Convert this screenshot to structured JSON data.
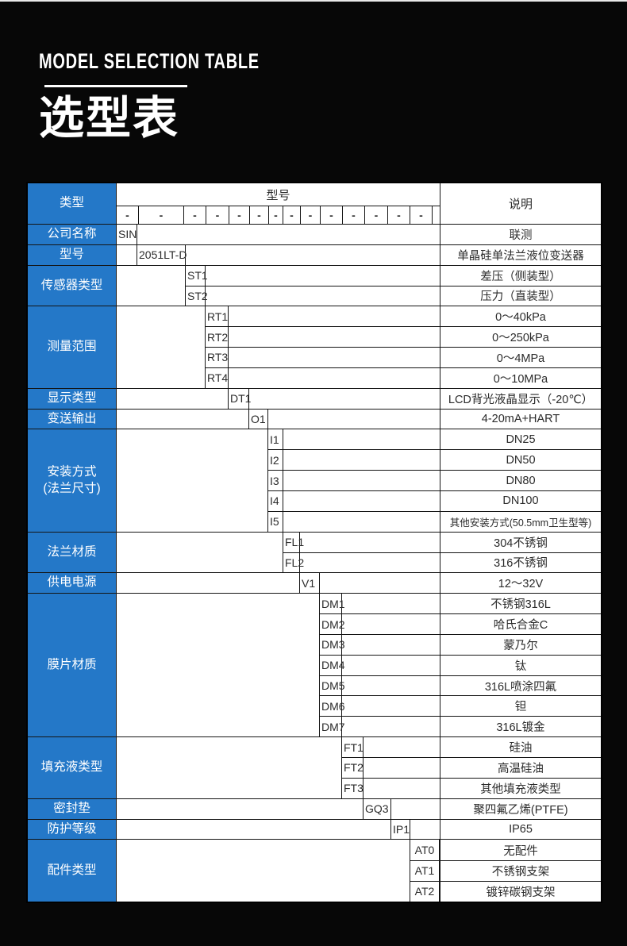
{
  "page": {
    "eyebrow": "MODEL SELECTION TABLE",
    "title": "选型表"
  },
  "colors": {
    "accent_blue": "#2478C8",
    "background_black": "#070707",
    "cell_white": "#ffffff",
    "border": "#141414"
  },
  "table": {
    "header": {
      "category": "类型",
      "model_group": "型号",
      "description": "说明",
      "dashes": [
        "-",
        "-",
        "-",
        "-",
        "-",
        "-",
        "-",
        "-",
        "-",
        "-",
        "-",
        "-",
        "-",
        "-"
      ]
    },
    "sections": [
      {
        "label": "公司名称",
        "items": [
          {
            "code": "SIN",
            "desc": "联测"
          }
        ]
      },
      {
        "label": "型号",
        "items": [
          {
            "code": "2051LT-D",
            "desc": "单晶硅单法兰液位变送器"
          }
        ]
      },
      {
        "label": "传感器类型",
        "items": [
          {
            "code": "ST1",
            "desc": "差压（侧装型）"
          },
          {
            "code": "ST2",
            "desc": "压力（直装型）"
          }
        ]
      },
      {
        "label": "测量范围",
        "items": [
          {
            "code": "RT1",
            "desc": "0～40kPa"
          },
          {
            "code": "RT2",
            "desc": "0～250kPa"
          },
          {
            "code": "RT3",
            "desc": "0～4MPa"
          },
          {
            "code": "RT4",
            "desc": "0～10MPa"
          }
        ]
      },
      {
        "label": "显示类型",
        "items": [
          {
            "code": "DT1",
            "desc": "LCD背光液晶显示（-20℃）"
          }
        ]
      },
      {
        "label": "变送输出",
        "items": [
          {
            "code": "O1",
            "desc": "4-20mA+HART"
          }
        ]
      },
      {
        "label": "安装方式",
        "label2": "(法兰尺寸)",
        "items": [
          {
            "code": "I1",
            "desc": "DN25"
          },
          {
            "code": "I2",
            "desc": "DN50"
          },
          {
            "code": "I3",
            "desc": "DN80"
          },
          {
            "code": "I4",
            "desc": "DN100"
          },
          {
            "code": "I5",
            "desc": "其他安装方式(50.5mm卫生型等)"
          }
        ]
      },
      {
        "label": "法兰材质",
        "items": [
          {
            "code": "FL1",
            "desc": "304不锈钢"
          },
          {
            "code": "FL2",
            "desc": "316不锈钢"
          }
        ]
      },
      {
        "label": "供电电源",
        "items": [
          {
            "code": "V1",
            "desc": "12～32V"
          }
        ]
      },
      {
        "label": "膜片材质",
        "items": [
          {
            "code": "DM1",
            "desc": "不锈钢316L"
          },
          {
            "code": "DM2",
            "desc": "哈氏合金C"
          },
          {
            "code": "DM3",
            "desc": "蒙乃尔"
          },
          {
            "code": "DM4",
            "desc": "钛"
          },
          {
            "code": "DM5",
            "desc": "316L喷涂四氟"
          },
          {
            "code": "DM6",
            "desc": "钽"
          },
          {
            "code": "DM7",
            "desc": "316L镀金"
          }
        ]
      },
      {
        "label": "填充液类型",
        "items": [
          {
            "code": "FT1",
            "desc": "硅油"
          },
          {
            "code": "FT2",
            "desc": "高温硅油"
          },
          {
            "code": "FT3",
            "desc": "其他填充液类型"
          }
        ]
      },
      {
        "label": "密封垫",
        "items": [
          {
            "code": "GQ3",
            "desc": "聚四氟乙烯(PTFE)"
          }
        ]
      },
      {
        "label": "防护等级",
        "items": [
          {
            "code": "IP1",
            "desc": "IP65"
          }
        ]
      },
      {
        "label": "配件类型",
        "items": [
          {
            "code": "AT0",
            "desc": "无配件"
          },
          {
            "code": "AT1",
            "desc": "不锈钢支架"
          },
          {
            "code": "AT2",
            "desc": "镀锌碳钢支架"
          }
        ]
      }
    ]
  }
}
